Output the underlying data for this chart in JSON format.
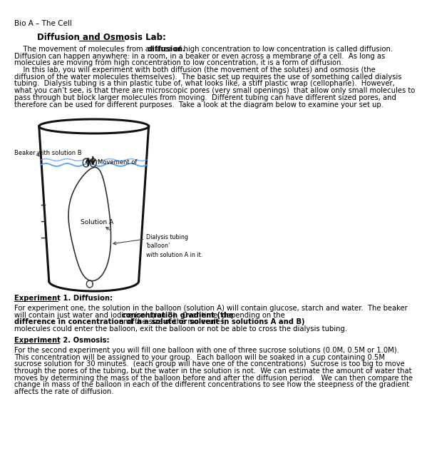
{
  "header": "Bio A – The Cell",
  "title": "Diffusion and Osmosis Lab:",
  "bg_color": "#ffffff",
  "text_color": "#000000",
  "font_size": 7.2,
  "header_font_size": 7.5,
  "title_font_size": 8.5,
  "label_beaker": "Beaker with solution B",
  "label_movement": "Movement of",
  "label_solution_a": "Solution A",
  "label_dialysis": "Dialysis tubing\n‘balloon’\nwith solution A in it.",
  "exp1_title": "Experiment 1. Diffusion:",
  "exp1_line1": "For experiment one, the solution in the balloon (solution A) will contain glucose, starch and water.  The beaker",
  "exp1_line2_pre": "will contain just water and iodine (solution B).  Over time, depending on the ",
  "exp1_bold1": "concentration gradient (the",
  "exp1_bold2": "difference in concentration of a a solute or solvent in solutions A and B)",
  "exp1_line3_post": " and the size of the molecules,",
  "exp1_line4": "molecules could enter the balloon, exit the balloon or not be able to cross the dialysis tubing.",
  "exp2_title": "Experiment 2. Osmosis:",
  "exp2_text": "For the second experiment you will fill one balloon with one of three sucrose solutions (0.0M, 0.5M or 1.0M).  This concentration will be assigned to your group.  Each balloon will be soaked in a cup containing 0.5M sucrose solution for 30 minutes.  (each group will have one of the concentrations)  Sucrose is too big to move through the pores of the tubing, but the water in the solution is not.  We can estimate the amount of water that moves by determining the mass of the balloon before and after the diffusion period.   We can then compare the change in mass of the balloon in each of the different concentrations to see how the steepness of the gradient affects the rate of diffusion.",
  "intro_text": "    The movement of molecules from an area of high concentration to low concentration is called diffusion. Diffusion can happen anywhere: in a room, in a beaker or even across a membrane of a cell.  As long as molecules are moving from high concentration to low concentration, it is a form of diffusion.\n    In this lab, you will experiment with both diffusion (the movement of the solutes) and osmosis (the diffusion of the water molecules themselves).  The basic set up requires the use of something called dialysis tubing.  Dialysis tubing is a thin plastic tube of, what looks like, a stiff plastic wrap (cellophane).  However, what you can’t see, is that there are microscopic pores (very small openings)  that allow only small molecules to pass through but block larger molecules from moving.  Different tubing can have different sized pores, and therefore can be used for different purposes.  Take a look at the diagram below to examine your set up."
}
